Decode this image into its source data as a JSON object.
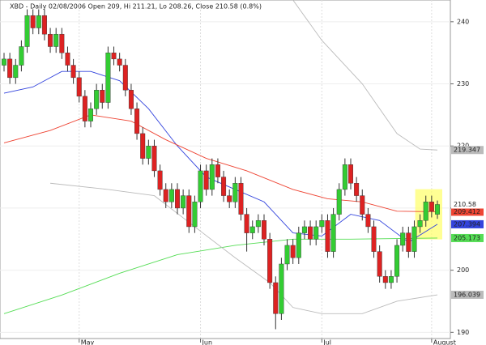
{
  "chart_data": {
    "type": "candlestick",
    "title": "XBD - Daily 02/08/2006 Open 209, Hi 211.21, Lo 208.26, Close 210.58 (0.8%)",
    "categories": [
      null,
      null,
      null,
      null,
      null,
      null,
      null,
      null,
      null,
      null,
      null,
      null,
      null,
      "May",
      null,
      null,
      null,
      null,
      null,
      null,
      null,
      null,
      null,
      null,
      null,
      null,
      null,
      null,
      null,
      null,
      null,
      null,
      null,
      null,
      "Jun",
      null,
      null,
      null,
      null,
      null,
      null,
      null,
      null,
      null,
      null,
      null,
      null,
      null,
      null,
      null,
      null,
      null,
      null,
      null,
      null,
      "Jul",
      null,
      null,
      null,
      null,
      null,
      null,
      null,
      null,
      null,
      null,
      null,
      null,
      null,
      null,
      null,
      null,
      null,
      null,
      "August",
      null
    ],
    "open": [
      233,
      234,
      231,
      233,
      236,
      241,
      239,
      241,
      238,
      236,
      238,
      235,
      233,
      231,
      228,
      224,
      226,
      229,
      227,
      235,
      234,
      233,
      229,
      226,
      222,
      218,
      220,
      216,
      213,
      211,
      213,
      210,
      212,
      207,
      211,
      216,
      213,
      217,
      215,
      212,
      211,
      214,
      209,
      206,
      207,
      208,
      205,
      198,
      193,
      201,
      204,
      202,
      206,
      207,
      205,
      207,
      208,
      203,
      209,
      213,
      217,
      214,
      212,
      209,
      207,
      203,
      199,
      198,
      199,
      204,
      206,
      203,
      207,
      208,
      211,
      209
    ],
    "high": [
      235,
      235,
      234,
      237,
      242,
      242,
      242,
      242,
      239,
      239,
      239,
      236,
      234,
      232,
      229,
      227,
      230,
      230,
      236,
      236,
      235,
      234,
      230,
      227,
      223,
      221,
      221,
      217,
      214,
      214,
      214,
      213,
      213,
      212,
      217,
      217,
      218,
      218,
      216,
      213,
      215,
      215,
      210,
      208,
      209,
      209,
      206,
      199,
      202,
      205,
      205,
      207,
      208,
      208,
      208,
      209,
      209,
      210,
      214,
      218,
      218,
      215,
      213,
      210,
      208,
      204,
      200,
      200,
      205,
      207,
      207,
      208,
      209,
      212,
      212,
      211.21
    ],
    "low": [
      232,
      230,
      230,
      232,
      235,
      238,
      238,
      237,
      235,
      235,
      234,
      232,
      230,
      227,
      223,
      223,
      225,
      226,
      226,
      233,
      232,
      228,
      225,
      221,
      217,
      217,
      215,
      212,
      210,
      210,
      209,
      209,
      206,
      206,
      210,
      212,
      212,
      214,
      211,
      210,
      210,
      208,
      203,
      205,
      206,
      204,
      197,
      190.5,
      192,
      200,
      201,
      201,
      205,
      204,
      204,
      206,
      202,
      202,
      208,
      212,
      213,
      211,
      208,
      206,
      202,
      198,
      197,
      197,
      198,
      203,
      202,
      202,
      206,
      207,
      208.5,
      208.26
    ],
    "close": [
      234,
      231,
      233,
      236,
      241,
      239,
      241,
      238,
      236,
      238,
      235,
      233,
      231,
      228,
      224,
      226,
      229,
      227,
      235,
      234,
      233,
      229,
      226,
      222,
      218,
      220,
      216,
      213,
      211,
      213,
      210,
      212,
      207,
      211,
      216,
      213,
      217,
      215,
      212,
      211,
      214,
      209,
      206,
      207,
      208,
      205,
      198,
      193,
      201,
      204,
      202,
      206,
      207,
      205,
      207,
      208,
      203,
      209,
      213,
      217,
      214,
      212,
      209,
      207,
      203,
      199,
      198,
      199,
      204,
      206,
      203,
      207,
      208,
      211,
      209.5,
      210.58
    ],
    "close_label": "210.58",
    "up_color": "#33cc33",
    "down_color": "#dd2222",
    "lines": [
      {
        "color": "#3344dd",
        "x": [
          0,
          5,
          10,
          15,
          20,
          25,
          30,
          35,
          40,
          45,
          50,
          55,
          60,
          65,
          70,
          75
        ],
        "values": [
          228.5,
          229.5,
          232,
          232,
          230.5,
          226,
          220,
          215,
          213,
          211,
          206,
          205.5,
          209,
          208,
          204.5,
          207.394
        ],
        "value_labels": [
          null,
          null,
          null,
          null,
          null,
          null,
          null,
          null,
          null,
          null,
          null,
          null,
          null,
          null,
          null,
          "207.394"
        ]
      },
      {
        "color": "#ee4433",
        "x": [
          0,
          8,
          15,
          22,
          28,
          35,
          42,
          50,
          56,
          62,
          68,
          75
        ],
        "values": [
          220.5,
          222.5,
          225,
          224,
          221,
          218,
          216,
          213,
          211.5,
          211,
          209.5,
          209.412
        ],
        "value_labels": [
          null,
          null,
          null,
          null,
          null,
          null,
          null,
          null,
          null,
          null,
          null,
          "209.412"
        ]
      },
      {
        "color": "#55dd55",
        "x": [
          0,
          10,
          20,
          30,
          40,
          50,
          60,
          75
        ],
        "values": [
          193,
          196,
          199.5,
          202.5,
          204,
          205,
          205,
          205.173
        ],
        "value_labels": [
          null,
          null,
          null,
          null,
          null,
          null,
          null,
          "205.173"
        ]
      },
      {
        "color": "#bbbbbb",
        "x": [
          8,
          18,
          26,
          33,
          40,
          46,
          50,
          55,
          62,
          68,
          75
        ],
        "values": [
          214,
          213,
          212,
          207,
          202,
          198,
          194,
          193,
          193,
          195,
          196.039
        ],
        "value_labels": [
          null,
          null,
          null,
          null,
          null,
          null,
          null,
          null,
          null,
          null,
          "196.039"
        ]
      },
      {
        "color": "#bbbbbb",
        "x": [
          50,
          55,
          62,
          68,
          72,
          75
        ],
        "values": [
          243.5,
          237,
          230,
          222,
          219.5,
          219.347
        ],
        "value_labels": [
          null,
          null,
          null,
          null,
          null,
          "219.347"
        ]
      }
    ],
    "ylim": [
      189,
      243.5
    ],
    "yticks": [
      190,
      200,
      210,
      220,
      230,
      240
    ],
    "grid": true
  }
}
